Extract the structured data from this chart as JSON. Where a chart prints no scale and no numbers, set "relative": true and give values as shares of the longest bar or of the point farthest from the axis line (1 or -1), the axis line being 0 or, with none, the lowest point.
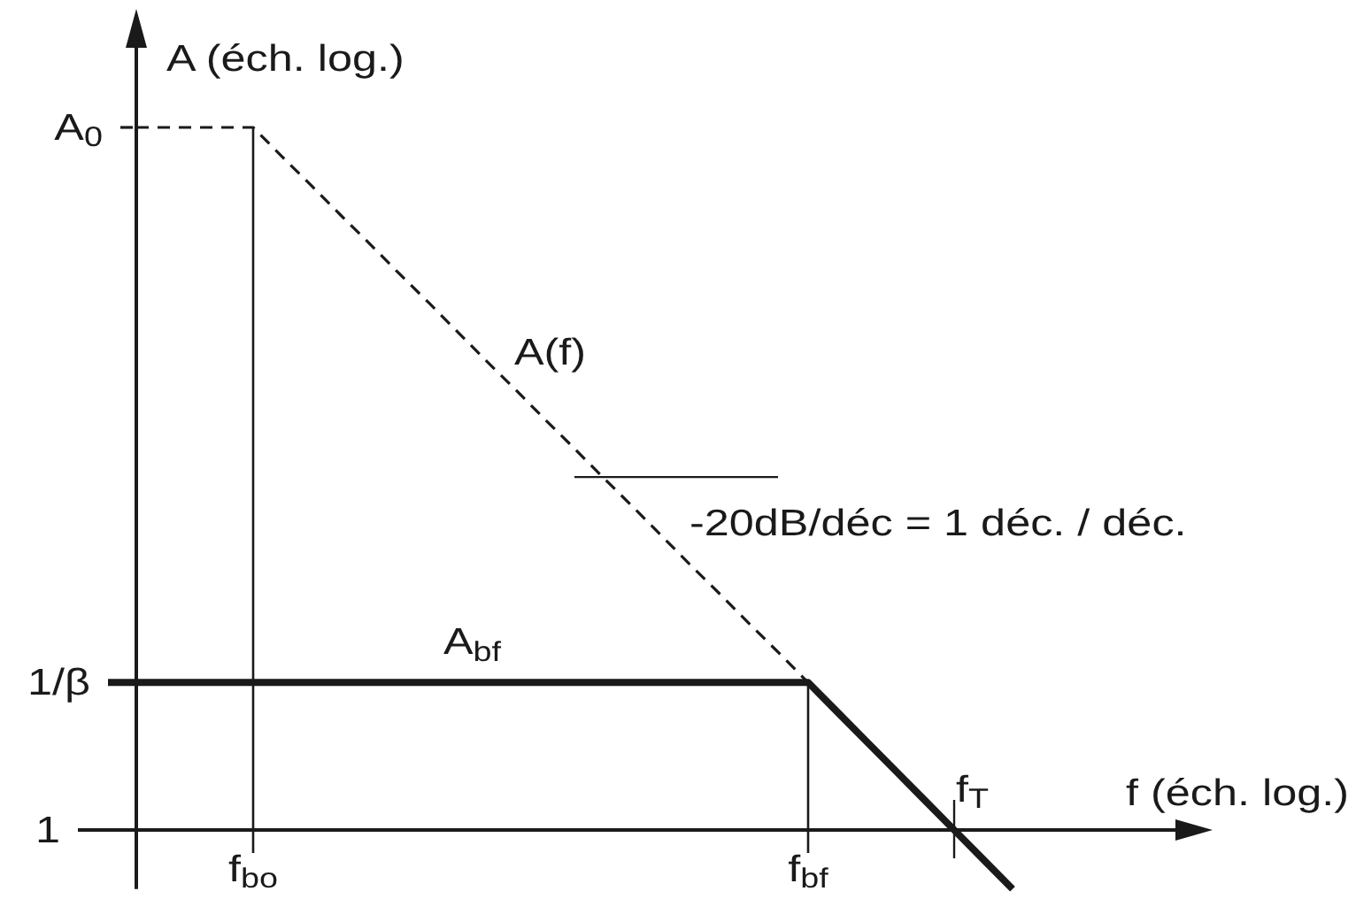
{
  "chart_data": {
    "type": "line",
    "relative": true,
    "xlabel": "f (éch. log.)",
    "ylabel": "A (éch. log.)",
    "categories": [
      null,
      null,
      null,
      null,
      "f$_{bo}$",
      null,
      null,
      null,
      null,
      null,
      null,
      null,
      null,
      null,
      null,
      null,
      null,
      null,
      null,
      null,
      null,
      null,
      null,
      "f$_{bf}$",
      null,
      null,
      null,
      null,
      null,
      null,
      null
    ],
    "series": [
      {
        "name": "A(f)",
        "color": "#1a1a1a",
        "line_style": "dashed",
        "values": [
          1,
          1,
          1,
          1,
          1,
          0.958,
          0.917,
          0.875,
          0.834,
          0.792,
          0.751,
          0.709,
          0.667,
          0.626,
          0.584,
          0.543,
          0.501,
          0.46,
          0.418,
          0.376,
          0.335,
          0.293,
          0.252,
          0.21,
          null,
          null,
          null,
          null,
          null,
          null,
          null
        ]
      },
      {
        "name": "A$_{bf}$",
        "color": "#1a1a1a",
        "line_style": "solid",
        "values": [
          0.21,
          0.21,
          0.21,
          0.21,
          0.21,
          0.21,
          0.21,
          0.21,
          0.21,
          0.21,
          0.21,
          0.21,
          0.21,
          0.21,
          0.21,
          0.21,
          0.21,
          0.21,
          0.21,
          0.21,
          0.21,
          0.21,
          0.21,
          0.21,
          0.168,
          0.126,
          0.084,
          0.042,
          0,
          -0.042,
          -0.084
        ]
      }
    ],
    "annotations": [
      "A$_{0}$",
      "1/β",
      "1",
      "f$_{T}$",
      "-20dB/déc = 1 déc. / déc."
    ]
  }
}
